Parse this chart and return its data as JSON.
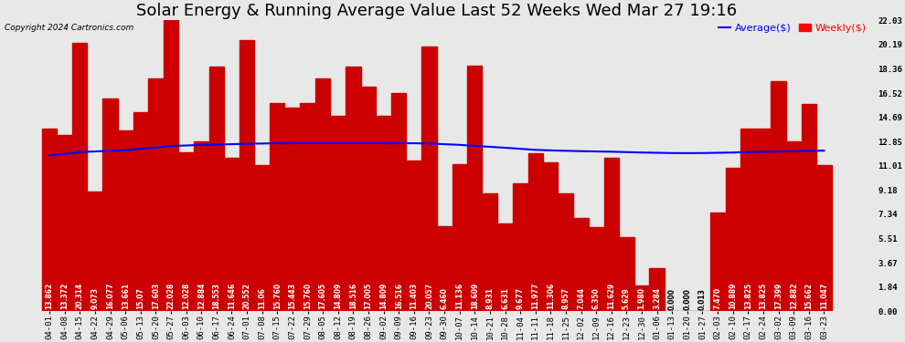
{
  "title": "Solar Energy & Running Average Value Last 52 Weeks Wed Mar 27 19:16",
  "copyright": "Copyright 2024 Cartronics.com",
  "legend_avg": "Average($)",
  "legend_weekly": "Weekly($)",
  "bar_color": "#cc0000",
  "line_color": "blue",
  "background_color": "#e8e8e8",
  "yticks": [
    0.0,
    1.84,
    3.67,
    5.51,
    7.34,
    9.18,
    11.01,
    12.85,
    14.69,
    16.52,
    18.36,
    20.19,
    22.03
  ],
  "categories": [
    "04-01",
    "04-08",
    "04-15",
    "04-22",
    "04-29",
    "05-06",
    "05-13",
    "05-20",
    "05-27",
    "06-03",
    "06-10",
    "06-17",
    "06-24",
    "07-01",
    "07-08",
    "07-15",
    "07-22",
    "07-29",
    "08-05",
    "08-12",
    "08-19",
    "08-26",
    "09-02",
    "09-09",
    "09-16",
    "09-23",
    "09-30",
    "10-07",
    "10-14",
    "10-21",
    "10-28",
    "11-04",
    "11-11",
    "11-18",
    "11-25",
    "12-02",
    "12-09",
    "12-16",
    "12-23",
    "12-30",
    "01-06",
    "01-13",
    "01-20",
    "01-27",
    "02-03",
    "02-10",
    "02-17",
    "02-24",
    "03-02",
    "03-09",
    "03-16",
    "03-23"
  ],
  "weekly_values": [
    13.862,
    13.372,
    20.314,
    9.073,
    16.077,
    13.661,
    15.07,
    17.603,
    22.028,
    12.028,
    12.884,
    18.553,
    11.646,
    20.552,
    11.06,
    15.76,
    15.443,
    15.76,
    17.605,
    14.809,
    18.516,
    17.005,
    14.809,
    16.516,
    11.403,
    20.057,
    6.46,
    11.136,
    18.609,
    8.931,
    6.631,
    9.677,
    11.977,
    11.306,
    8.957,
    7.044,
    6.35,
    11.629,
    5.629,
    1.98,
    3.284,
    0.0,
    0.0,
    0.013,
    7.47,
    10.889,
    13.825,
    13.825,
    17.399,
    12.882,
    15.662,
    11.047
  ],
  "bar_label_values": [
    "13.862",
    "13.372",
    "20.314",
    "9.073",
    "16.077",
    "13.661",
    "15.07",
    "17.603",
    "22.028",
    "12.028",
    "12.884",
    "18.553",
    "11.646",
    "20.552",
    "11.06",
    "15.760",
    "15.443",
    "15.760",
    "17.605",
    "14.809",
    "18.516",
    "17.005",
    "14.809",
    "16.516",
    "11.403",
    "20.057",
    "6.460",
    "11.136",
    "18.609",
    "8.931",
    "6.631",
    "9.677",
    "11.977",
    "11.306",
    "8.957",
    "7.044",
    "6.350",
    "11.629",
    "5.629",
    "1.980",
    "3.284",
    "0.000",
    "0.000",
    "0.013",
    "7.470",
    "10.889",
    "13.825",
    "13.825",
    "17.399",
    "12.882",
    "15.662",
    "11.047"
  ],
  "average_values": [
    11.8,
    11.92,
    12.05,
    12.1,
    12.15,
    12.2,
    12.3,
    12.4,
    12.52,
    12.55,
    12.6,
    12.62,
    12.65,
    12.68,
    12.7,
    12.72,
    12.73,
    12.73,
    12.73,
    12.73,
    12.73,
    12.73,
    12.73,
    12.72,
    12.72,
    12.7,
    12.65,
    12.6,
    12.52,
    12.45,
    12.38,
    12.3,
    12.22,
    12.18,
    12.15,
    12.12,
    12.1,
    12.08,
    12.05,
    12.02,
    12.0,
    11.98,
    11.97,
    11.98,
    12.0,
    12.02,
    12.05,
    12.08,
    12.1,
    12.12,
    12.14,
    12.16
  ],
  "title_fontsize": 13,
  "tick_fontsize": 6.5,
  "label_fontsize": 5.5,
  "grid_color": "#ffffff",
  "grid_linestyle": "--",
  "ylim": [
    0,
    22.03
  ]
}
